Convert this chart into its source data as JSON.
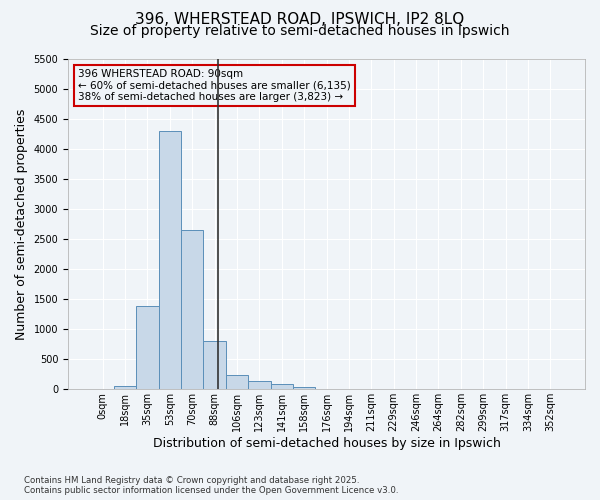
{
  "title_line1": "396, WHERSTEAD ROAD, IPSWICH, IP2 8LQ",
  "title_line2": "Size of property relative to semi-detached houses in Ipswich",
  "xlabel": "Distribution of semi-detached houses by size in Ipswich",
  "ylabel": "Number of semi-detached properties",
  "footnote": "Contains HM Land Registry data © Crown copyright and database right 2025.\nContains public sector information licensed under the Open Government Licence v3.0.",
  "bin_labels": [
    "0sqm",
    "18sqm",
    "35sqm",
    "53sqm",
    "70sqm",
    "88sqm",
    "106sqm",
    "123sqm",
    "141sqm",
    "158sqm",
    "176sqm",
    "194sqm",
    "211sqm",
    "229sqm",
    "246sqm",
    "264sqm",
    "282sqm",
    "299sqm",
    "317sqm",
    "334sqm",
    "352sqm"
  ],
  "bar_values": [
    0,
    50,
    1380,
    4300,
    2650,
    800,
    230,
    130,
    80,
    30,
    5,
    0,
    0,
    0,
    0,
    0,
    0,
    0,
    0,
    0,
    0
  ],
  "bar_color": "#c8d8e8",
  "bar_edge_color": "#5b8fb9",
  "vline_x": 5.14,
  "vline_color": "#333333",
  "annotation_text": "396 WHERSTEAD ROAD: 90sqm\n← 60% of semi-detached houses are smaller (6,135)\n38% of semi-detached houses are larger (3,823) →",
  "box_color": "#cc0000",
  "ylim": [
    0,
    5500
  ],
  "yticks": [
    0,
    500,
    1000,
    1500,
    2000,
    2500,
    3000,
    3500,
    4000,
    4500,
    5000,
    5500
  ],
  "bg_color": "#f0f4f8",
  "grid_color": "#ffffff",
  "title_fontsize": 11,
  "subtitle_fontsize": 10,
  "axis_fontsize": 9,
  "tick_fontsize": 7
}
